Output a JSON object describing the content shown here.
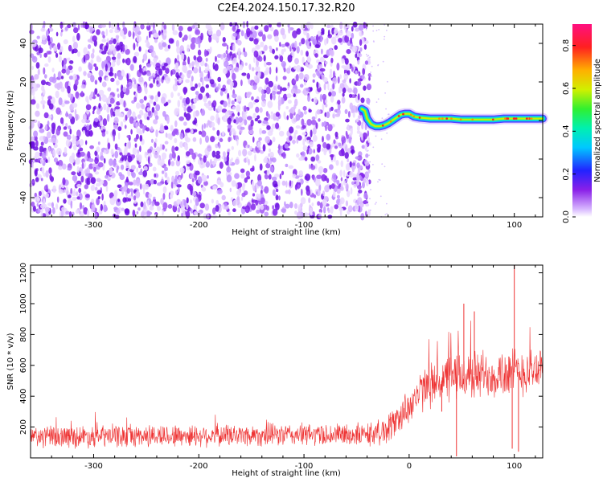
{
  "title": "C2E4.2024.150.17.32.R20",
  "colors": {
    "snr_line": "#ee3333",
    "scatter_low": "#e9d9ff",
    "scatter_high": "#7a10e8"
  },
  "chart_data": [
    {
      "type": "heatmap",
      "title": "",
      "xlabel": "Height of straight line (km)",
      "ylabel": "Frequency (Hz)",
      "xlim": [
        -360,
        127
      ],
      "ylim": [
        -50,
        50
      ],
      "x_ticks": [
        "-300",
        "-200",
        "-100",
        "0",
        "100"
      ],
      "y_ticks": [
        "-40",
        "-20",
        "0",
        "20",
        "40"
      ],
      "noise_region_x": [
        -360,
        -42
      ],
      "signal_trace": {
        "x": [
          -45,
          -42,
          -40,
          -36,
          -32,
          -28,
          -24,
          -20,
          -16,
          -12,
          -8,
          -4,
          0,
          5,
          10,
          20,
          30,
          40,
          50,
          60,
          70,
          80,
          90,
          100,
          110,
          120,
          127
        ],
        "y": [
          6,
          5,
          1,
          -2,
          -3,
          -3,
          -2.5,
          -1.5,
          0,
          1.5,
          3,
          3.5,
          3.5,
          2,
          1.5,
          1,
          1,
          1,
          0.5,
          0.5,
          0.5,
          0.5,
          1,
          1,
          1,
          1,
          1
        ],
        "peak_amplitude": 0.85
      },
      "colorbar": {
        "label": "Normalized spectral amplitude",
        "range": [
          0,
          0.9
        ],
        "ticks": [
          "0.0",
          "0.2",
          "0.4",
          "0.6",
          "0.8"
        ]
      },
      "grid": false
    },
    {
      "type": "line",
      "title": "",
      "xlabel": "Height of straight line (km)",
      "ylabel": "SNR (10 * v/v)",
      "xlim": [
        -360,
        127
      ],
      "ylim": [
        0,
        1250
      ],
      "x_ticks": [
        "-300",
        "-200",
        "-100",
        "0",
        "100"
      ],
      "y_ticks": [
        "200",
        "400",
        "600",
        "800",
        "1000",
        "1200"
      ],
      "series": [
        {
          "trend_x": [
            -360,
            -300,
            -200,
            -100,
            -40,
            -25,
            -15,
            -5,
            5,
            15,
            25,
            35,
            50,
            70,
            90,
            110,
            127
          ],
          "trend_mean": [
            135,
            140,
            145,
            150,
            150,
            170,
            220,
            300,
            380,
            450,
            490,
            510,
            530,
            540,
            550,
            560,
            580
          ],
          "noise_spread": [
            70,
            70,
            70,
            70,
            70,
            90,
            100,
            110,
            120,
            130,
            140,
            150,
            160,
            160,
            160,
            150,
            150
          ],
          "spikes": [
            [
              45,
              10
            ],
            [
              52,
              1000
            ],
            [
              62,
              950
            ],
            [
              100,
              1250
            ],
            [
              98,
              60
            ],
            [
              104,
              40
            ],
            [
              31,
              300
            ]
          ]
        }
      ],
      "grid": false
    }
  ]
}
